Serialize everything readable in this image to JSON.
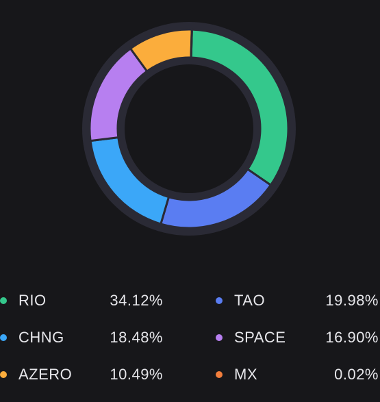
{
  "chart_data": {
    "type": "pie",
    "donut": true,
    "title": "",
    "legend_position": "bottom",
    "grid": false,
    "slices": [
      {
        "name": "RIO",
        "label": "34.12%",
        "value": 34.12,
        "color": "#34c88c"
      },
      {
        "name": "TAO",
        "label": "19.98%",
        "value": 19.98,
        "color": "#5a7df2"
      },
      {
        "name": "CHNG",
        "label": "18.48%",
        "value": 18.48,
        "color": "#3ba7f8"
      },
      {
        "name": "SPACE",
        "label": "16.90%",
        "value": 16.9,
        "color": "#b77ff0"
      },
      {
        "name": "AZERO",
        "label": "10.49%",
        "value": 10.49,
        "color": "#fbad3c"
      },
      {
        "name": "MX",
        "label": "0.02%",
        "value": 0.02,
        "color": "#f27e3c"
      }
    ]
  },
  "colors": {
    "background": "#17171a",
    "ring_track": "#2a2a35",
    "hole": "#17171a"
  }
}
